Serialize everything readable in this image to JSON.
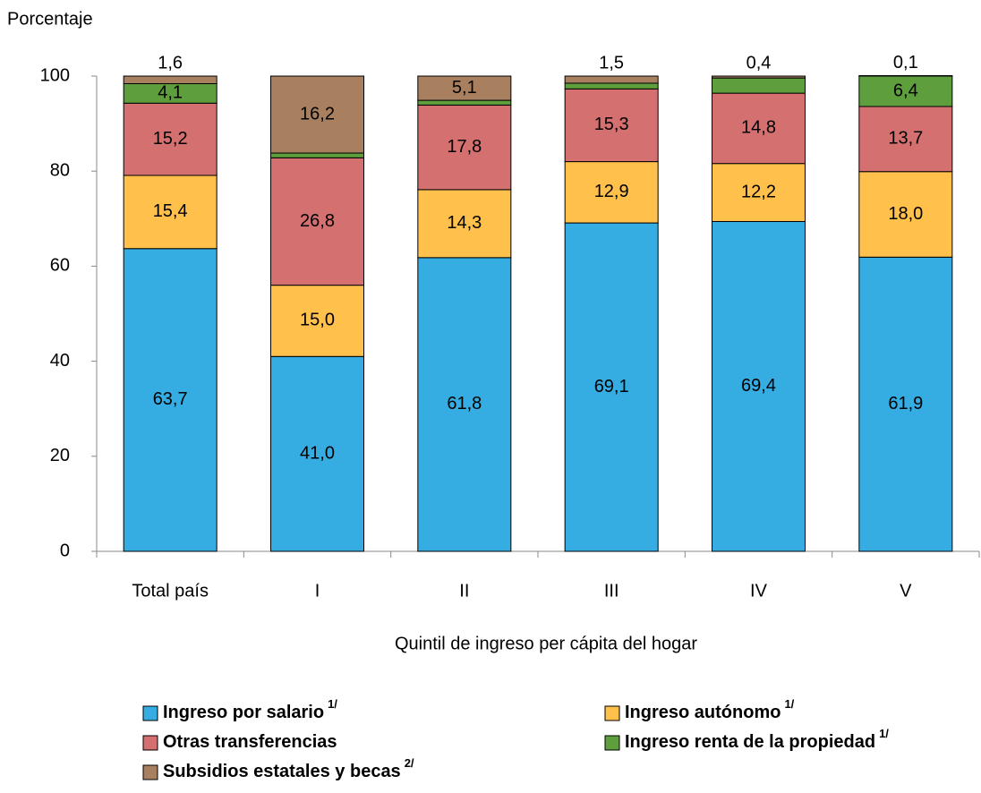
{
  "chart_data": {
    "type": "stacked_bar",
    "y_label": "Porcentaje",
    "x_label": "Quintil de ingreso per cápita del hogar",
    "categories": [
      "Total país",
      "I",
      "II",
      "III",
      "IV",
      "V"
    ],
    "ylim": [
      0,
      100
    ],
    "yticks": [
      0,
      20,
      40,
      60,
      80,
      100
    ],
    "series": [
      {
        "name": "Ingreso por salario",
        "note": "1/",
        "color": "#35ade3",
        "values": [
          63.7,
          41.0,
          61.8,
          69.1,
          69.4,
          61.9
        ],
        "value_labels": [
          "63,7",
          "41,0",
          "61,8",
          "69,1",
          "69,4",
          "61,9"
        ]
      },
      {
        "name": "Ingreso autónomo",
        "note": "1/",
        "color": "#ffc04c",
        "values": [
          15.4,
          15.0,
          14.3,
          12.9,
          12.2,
          18.0
        ],
        "value_labels": [
          "15,4",
          "15,0",
          "14,3",
          "12,9",
          "12,2",
          "18,0"
        ]
      },
      {
        "name": "Otras transferencias",
        "color": "#d4706f",
        "values": [
          15.2,
          26.8,
          17.8,
          15.3,
          14.8,
          13.7
        ],
        "value_labels": [
          "15,2",
          "26,8",
          "17,8",
          "15,3",
          "14,8",
          "13,7"
        ]
      },
      {
        "name": "Ingreso renta de la propiedad",
        "note": "1/",
        "color": "#5e9e3c",
        "values": [
          4.1,
          1.0,
          1.0,
          1.2,
          3.2,
          6.4
        ],
        "value_labels": [
          "4,1",
          null,
          null,
          null,
          null,
          "6,4"
        ]
      },
      {
        "name": "Subsidios estatales y becas",
        "note": "2/",
        "color": "#a88060",
        "values": [
          1.6,
          16.2,
          5.1,
          1.5,
          0.4,
          0.1
        ],
        "value_labels": [
          "1,6",
          "16,2",
          "5,1",
          "1,5",
          "0,4",
          "0,1"
        ]
      }
    ]
  }
}
